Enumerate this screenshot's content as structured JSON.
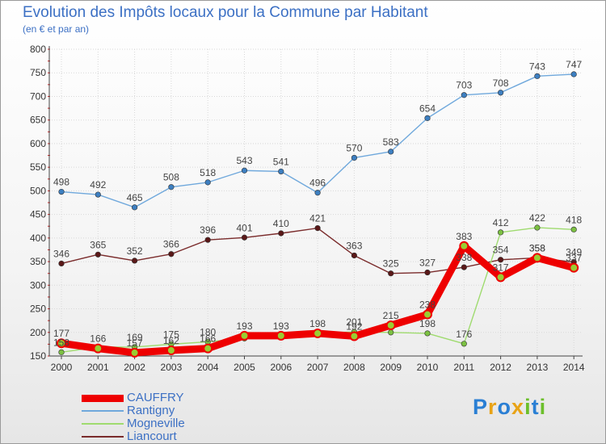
{
  "chart_data": {
    "type": "line",
    "title": "Evolution des Impôts locaux pour la Commune par Habitant",
    "subtitle": "(en € et par an)",
    "x": [
      "2000",
      "2001",
      "2002",
      "2003",
      "2004",
      "2005",
      "2006",
      "2007",
      "2008",
      "2009",
      "2010",
      "2011",
      "2012",
      "2013",
      "2014"
    ],
    "y_ticks": [
      150,
      200,
      250,
      300,
      350,
      400,
      450,
      500,
      550,
      600,
      650,
      700,
      750,
      800
    ],
    "ylim": [
      150,
      800
    ],
    "grid": true,
    "legend_position": "bottom-left",
    "series": [
      {
        "name": "Rantigny",
        "color": "#6fa8dc",
        "marker": "#3d7fc1",
        "width": 1.4,
        "values": [
          498,
          492,
          465,
          508,
          518,
          543,
          541,
          496,
          570,
          583,
          654,
          703,
          708,
          743,
          747
        ],
        "labels": [
          "498",
          "492",
          "465",
          "508",
          "518",
          "543",
          "541",
          "496",
          "570",
          "583",
          "654",
          "703",
          "708",
          "743",
          "747"
        ]
      },
      {
        "name": "Liancourt",
        "color": "#7a2b2b",
        "marker": "#5a1818",
        "width": 1.4,
        "values": [
          346,
          365,
          352,
          366,
          396,
          401,
          410,
          421,
          363,
          325,
          327,
          338,
          354,
          358,
          349
        ],
        "labels": [
          "346",
          "365",
          "352",
          "366",
          "396",
          "401",
          "410",
          "421",
          "363",
          "325",
          "327",
          "338",
          "354",
          "358",
          "349"
        ]
      },
      {
        "name": "Mogneville",
        "color": "#9fdb6f",
        "marker": "#7cc142",
        "width": 1.4,
        "values": [
          158,
          169,
          169,
          175,
          180,
          187,
          194,
          199,
          201,
          200,
          198,
          176,
          412,
          422,
          418
        ],
        "labels": [
          "158",
          "",
          "169",
          "175",
          "180",
          "",
          "",
          "",
          "201",
          "",
          "198",
          "176",
          "412",
          "422",
          "418"
        ]
      },
      {
        "name": "CAUFFRY",
        "color": "#ee0000",
        "marker": "#ee0000",
        "width": 9,
        "values": [
          177,
          166,
          157,
          162,
          166,
          193,
          193,
          198,
          192,
          215,
          238,
          383,
          317,
          358,
          337
        ],
        "labels": [
          "177",
          "166",
          "157",
          "162",
          "166",
          "193",
          "193",
          "198",
          "192",
          "215",
          "238",
          "383",
          "317",
          "358",
          "337"
        ]
      }
    ],
    "legend_order": [
      "CAUFFRY",
      "Rantigny",
      "Mogneville",
      "Liancourt"
    ]
  },
  "logo": {
    "letters": [
      "P",
      "r",
      "o",
      "x",
      "i",
      "t",
      "i"
    ],
    "colors": [
      "#2a7fd4",
      "#e8a317",
      "#2a7fd4",
      "#e8a317",
      "#6cbf2b",
      "#2a7fd4",
      "#6cbf2b"
    ]
  }
}
